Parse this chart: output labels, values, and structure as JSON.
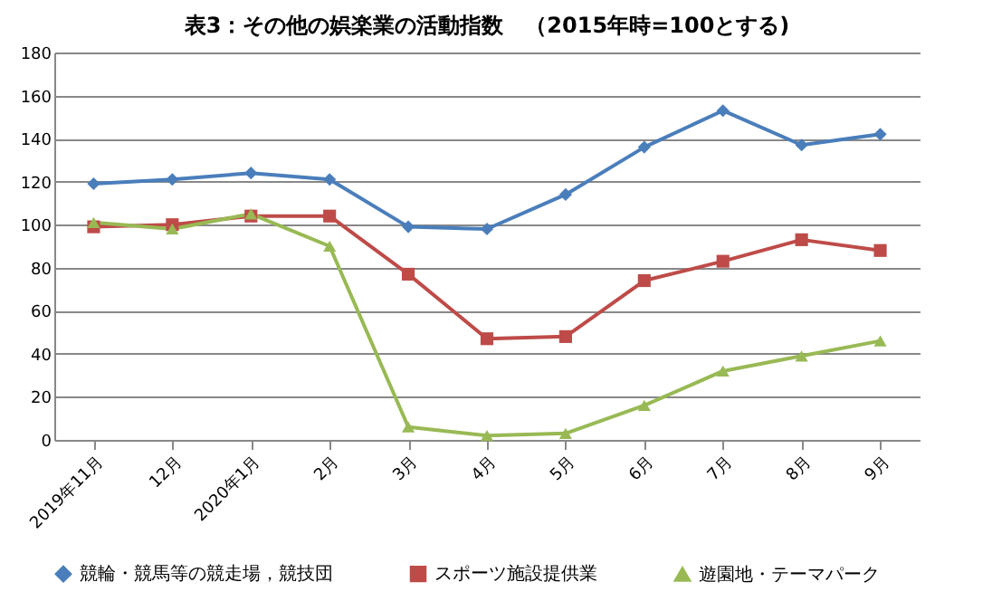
{
  "chart_data": {
    "type": "line",
    "title": "表3：その他の娯楽業の活動指数　（2015年時=100とする)",
    "categories": [
      "2019年11月",
      "12月",
      "2020年1月",
      "2月",
      "3月",
      "4月",
      "5月",
      "6月",
      "7月",
      "8月",
      "9月"
    ],
    "series": [
      {
        "name": "競輪・競馬等の競走場，競技団",
        "color": "#4a7ebb",
        "marker": "diamond",
        "values": [
          119,
          121,
          124,
          121,
          99,
          98,
          114,
          136,
          153,
          137,
          142
        ]
      },
      {
        "name": "スポーツ施設提供業",
        "color": "#be4b48",
        "marker": "square",
        "values": [
          99,
          100,
          104,
          104,
          77,
          47,
          48,
          74,
          83,
          93,
          88
        ]
      },
      {
        "name": "遊園地・テーマパーク",
        "color": "#98b954",
        "marker": "triangle",
        "values": [
          101,
          98,
          105,
          90,
          6,
          2,
          3,
          16,
          32,
          39,
          46
        ]
      }
    ],
    "ylim": [
      0,
      180
    ],
    "yticks": [
      0,
      20,
      40,
      60,
      80,
      100,
      120,
      140,
      160,
      180
    ],
    "grid": "y",
    "legend": "bottom"
  }
}
